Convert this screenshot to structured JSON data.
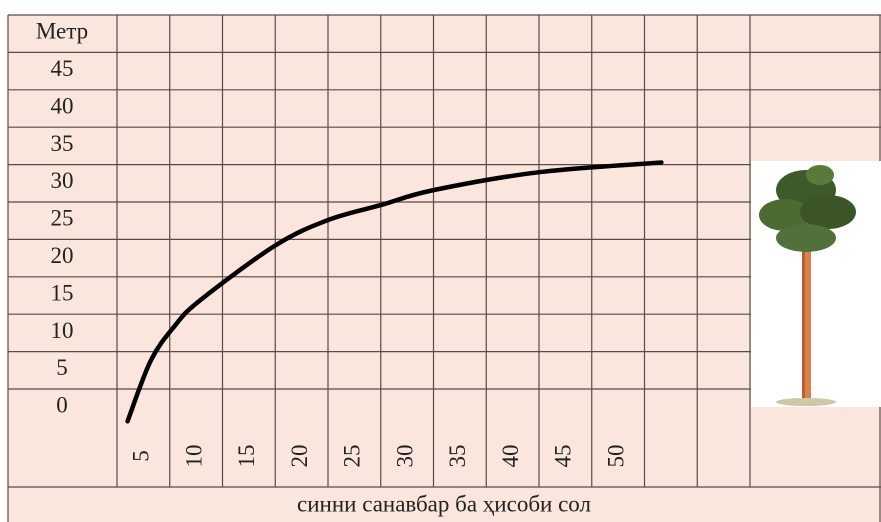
{
  "chart_data": {
    "type": "line",
    "y_label": "Метр",
    "x_label": "синни санавбар ба ҳисоби сол",
    "x": [
      3.5,
      5.7,
      8.0,
      10.4,
      17.5,
      22.5,
      27.5,
      32.5,
      42.5,
      54.1
    ],
    "values": [
      -2.0,
      6.1,
      10.8,
      14.2,
      21.5,
      24.9,
      26.9,
      28.9,
      31.3,
      32.6
    ],
    "color": "#000000",
    "xlim": [
      2.5,
      62.5
    ],
    "xticks": [
      5,
      10,
      15,
      20,
      25,
      30,
      35,
      40,
      45,
      50
    ],
    "ylim": [
      -2.5,
      47.5
    ],
    "yticks": [
      0,
      5,
      10,
      15,
      20,
      25,
      30,
      35,
      40,
      45
    ]
  }
}
